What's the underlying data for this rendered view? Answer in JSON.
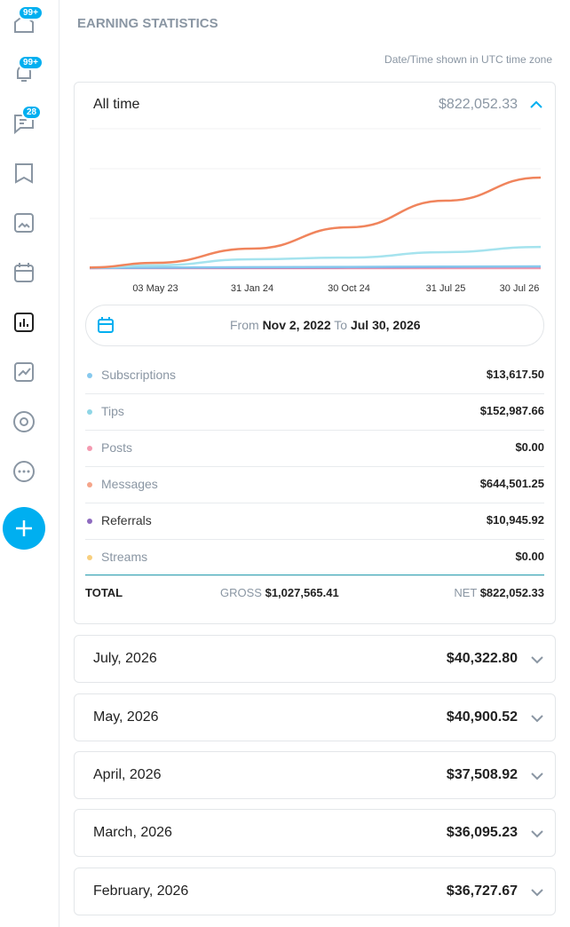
{
  "sidebar": {
    "badges": [
      "99+",
      "99+",
      "28"
    ]
  },
  "header": {
    "title": "EARNING STATISTICS",
    "timezone_note": "Date/Time shown in UTC time zone"
  },
  "summary": {
    "period": "All time",
    "total": "$822,052.33",
    "chart": {
      "type": "line",
      "categories": [
        null,
        "03 May 23",
        "31 Jan 24",
        "30 Oct 24",
        "31 Jul 25",
        "30 Jul 26"
      ],
      "ylim": [
        0,
        1000000
      ],
      "series": [
        {
          "name": "Messages",
          "color": "#f0845c",
          "values": [
            5000,
            38000,
            140000,
            293000,
            484000,
            650000
          ]
        },
        {
          "name": "Tips",
          "color": "#a5e3ee",
          "values": [
            5000,
            20000,
            64000,
            76000,
            115000,
            152000
          ]
        },
        {
          "name": "Subscriptions",
          "color": "#87c9ee",
          "values": [
            2000,
            4000,
            7000,
            9000,
            11000,
            13000
          ]
        },
        {
          "name": "Referrals",
          "color": "#8e6bbf",
          "values": [
            1000,
            2000,
            4000,
            6000,
            9000,
            11000
          ]
        },
        {
          "name": "Posts",
          "color": "#f49ab0",
          "values": [
            0,
            0,
            0,
            0,
            0,
            0
          ]
        }
      ]
    },
    "date_range": {
      "from_label": "From",
      "from": "Nov 2, 2022",
      "to_label": "To",
      "to": "Jul 30, 2026"
    },
    "breakdown": [
      {
        "label": "Subscriptions",
        "color": "#87c9ee",
        "amount": "$13,617.50"
      },
      {
        "label": "Tips",
        "color": "#8fd6e6",
        "amount": "$152,987.66"
      },
      {
        "label": "Posts",
        "color": "#f49ab0",
        "amount": "$0.00"
      },
      {
        "label": "Messages",
        "color": "#f5a58a",
        "amount": "$644,501.25"
      },
      {
        "label": "Referrals",
        "color": "#8e6bbf",
        "amount": "$10,945.92"
      },
      {
        "label": "Streams",
        "color": "#f8cf7e",
        "amount": "$0.00"
      }
    ],
    "totals": {
      "label": "TOTAL",
      "gross_label": "GROSS",
      "gross": "$1,027,565.41",
      "net_label": "NET",
      "net": "$822,052.33"
    }
  },
  "months": [
    {
      "label": "July, 2026",
      "amount": "$40,322.80"
    },
    {
      "label": "May, 2026",
      "amount": "$40,900.52"
    },
    {
      "label": "April, 2026",
      "amount": "$37,508.92"
    },
    {
      "label": "March, 2026",
      "amount": "$36,095.23"
    },
    {
      "label": "February, 2026",
      "amount": "$36,727.67"
    }
  ]
}
